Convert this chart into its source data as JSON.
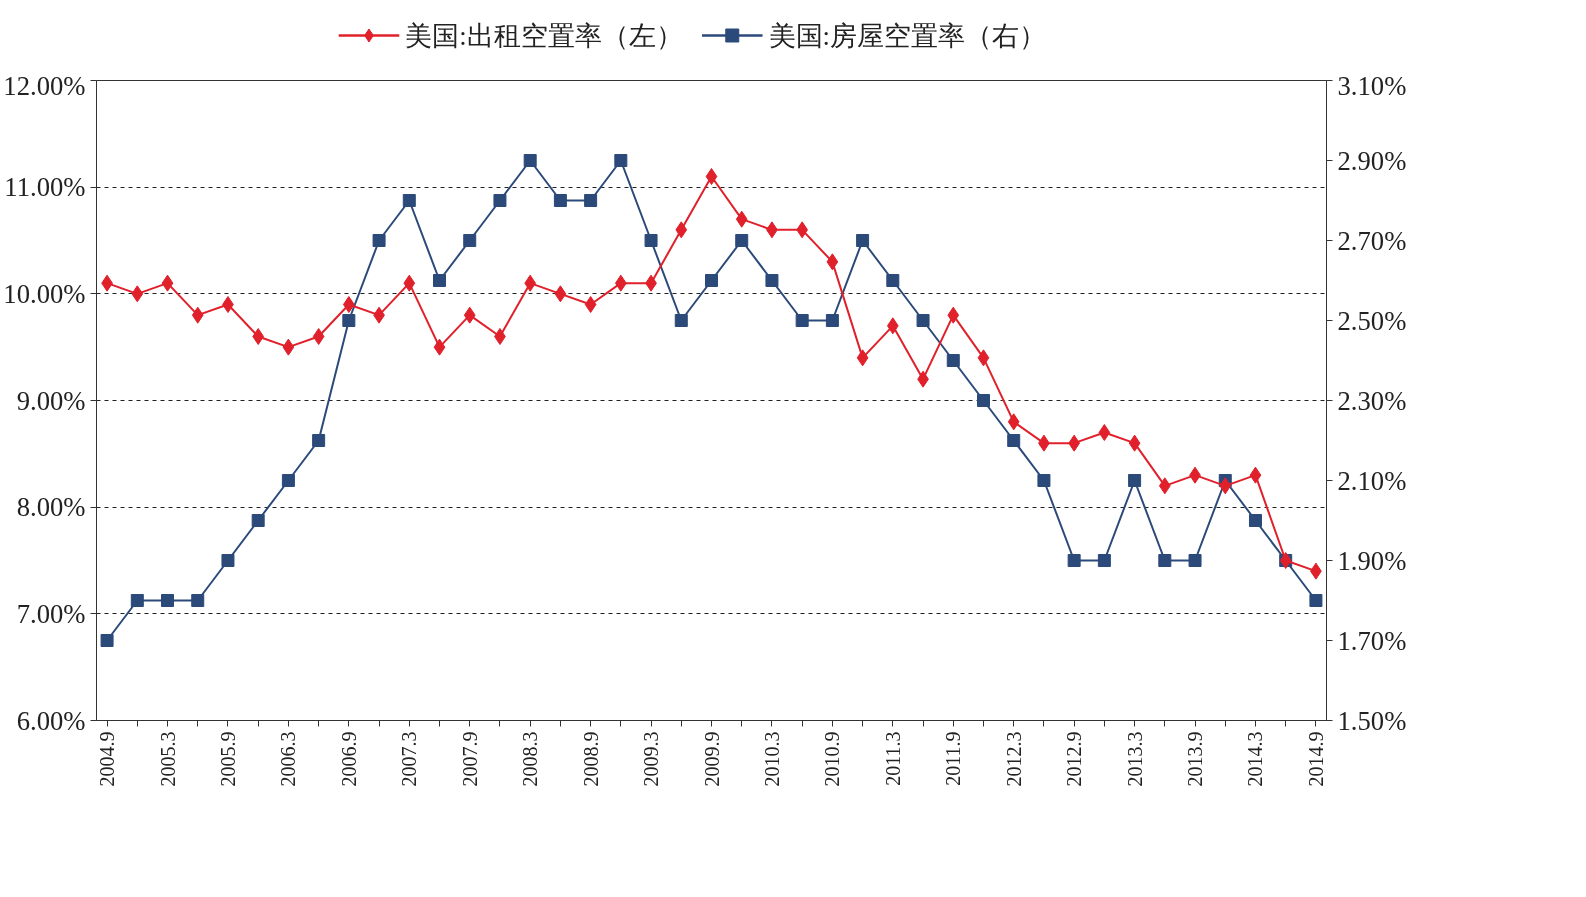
{
  "chart_data": {
    "type": "line",
    "categories": [
      "2004.9",
      null,
      "2005.3",
      null,
      "2005.9",
      null,
      "2006.3",
      null,
      "2006.9",
      null,
      "2007.3",
      null,
      "2007.9",
      null,
      "2008.3",
      null,
      "2008.9",
      null,
      "2009.3",
      null,
      "2009.9",
      null,
      "2010.3",
      null,
      "2010.9",
      null,
      "2011.3",
      null,
      "2011.9",
      null,
      "2012.3",
      null,
      "2012.9",
      null,
      "2013.3",
      null,
      "2013.9",
      null,
      "2014.3",
      null,
      "2014.9"
    ],
    "series": [
      {
        "name": "美国:出租空置率（左）",
        "color": "#e0202a",
        "marker": "diamond",
        "values": [
          10.1,
          10.0,
          10.1,
          9.8,
          9.9,
          9.6,
          9.5,
          9.6,
          9.9,
          9.8,
          10.1,
          9.5,
          9.8,
          9.6,
          10.1,
          10.0,
          9.9,
          10.1,
          10.1,
          10.6,
          11.1,
          10.7,
          10.6,
          10.6,
          10.3,
          9.4,
          9.7,
          9.2,
          9.8,
          9.4,
          8.8,
          8.6,
          8.6,
          8.7,
          8.6,
          8.2,
          8.3,
          8.2,
          8.3,
          7.5,
          7.4
        ]
      },
      {
        "name": "美国:房屋空置率（右）",
        "color": "#2b4a7a",
        "marker": "square",
        "axis": "y2",
        "values": [
          1.7,
          1.8,
          1.8,
          1.8,
          1.9,
          2.0,
          2.1,
          2.2,
          2.5,
          2.7,
          2.8,
          2.6,
          2.7,
          2.8,
          2.9,
          2.8,
          2.8,
          2.9,
          2.7,
          2.5,
          2.6,
          2.7,
          2.6,
          2.5,
          2.5,
          2.7,
          2.6,
          2.5,
          2.4,
          2.3,
          2.2,
          2.1,
          1.9,
          1.9,
          2.1,
          1.9,
          1.9,
          2.1,
          2.0,
          1.9,
          1.8
        ]
      }
    ],
    "ylim": [
      6,
      12
    ],
    "yticks": [
      {
        "value": 6,
        "label": "6.00%"
      },
      {
        "value": 7,
        "label": "7.00%"
      },
      {
        "value": 8,
        "label": "8.00%"
      },
      {
        "value": 9,
        "label": "9.00%"
      },
      {
        "value": 10,
        "label": "10.00%"
      },
      {
        "value": 11,
        "label": "11.00%"
      },
      {
        "value": 12,
        "label": "12.00%"
      }
    ],
    "y2lim": [
      1.5,
      3.1
    ],
    "y2ticks": [
      {
        "value": 1.5,
        "label": "1.50%"
      },
      {
        "value": 1.7,
        "label": "1.70%"
      },
      {
        "value": 1.9,
        "label": "1.90%"
      },
      {
        "value": 2.1,
        "label": "2.10%"
      },
      {
        "value": 2.3,
        "label": "2.30%"
      },
      {
        "value": 2.5,
        "label": "2.50%"
      },
      {
        "value": 2.7,
        "label": "2.70%"
      },
      {
        "value": 2.9,
        "label": "2.90%"
      },
      {
        "value": 3.1,
        "label": "3.10%"
      }
    ],
    "grid": "y",
    "legend": "top",
    "line_style": "solid"
  }
}
